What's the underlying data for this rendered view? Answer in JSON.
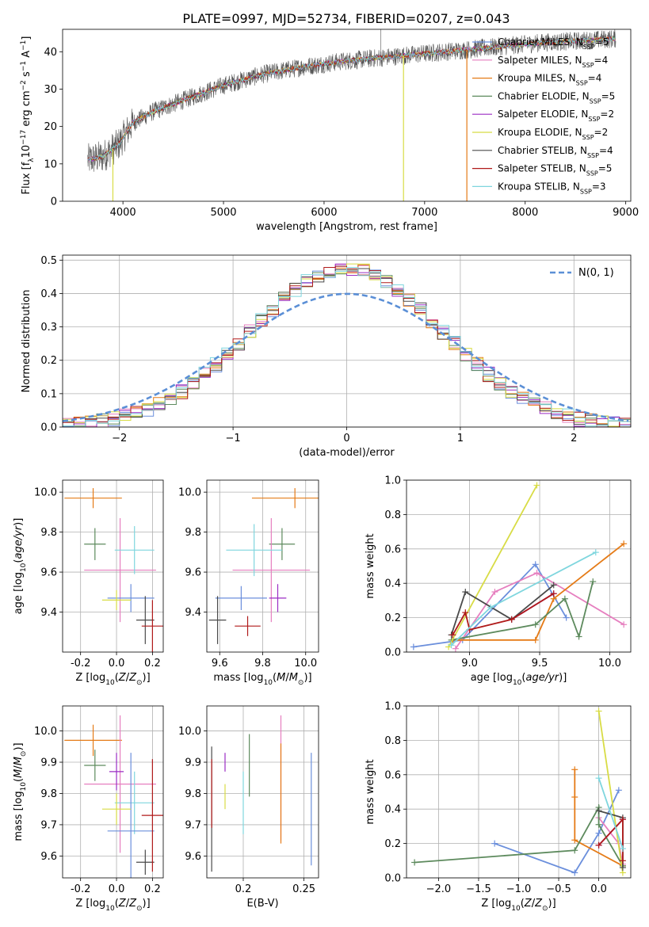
{
  "figure": {
    "title": "PLATE=0997, MJD=52734, FIBERID=0207, z=0.043"
  },
  "colors": {
    "Chabrier MILES": "#6b8fdc",
    "Salpeter MILES": "#e67fbf",
    "Kroupa MILES": "#e57b17",
    "Chabrier ELODIE": "#5d8a5d",
    "Salpeter ELODIE": "#9b2cc4",
    "Kroupa ELODIE": "#d8dc45",
    "Chabrier STELIB": "#4a4a4a",
    "Salpeter STELIB": "#b01a1a",
    "Kroupa STELIB": "#7fd6de",
    "data_gray": "#555555",
    "normal_curve": "#5b8fd6"
  },
  "chart_data": [
    {
      "id": "spectrum",
      "type": "line",
      "title": "",
      "xlabel": "wavelength [Angstrom, rest frame]",
      "ylabel": "Flux [f_λ 10^-17 erg cm^-2 s^-1 A^-1]",
      "xlim": [
        3400,
        9050
      ],
      "ylim": [
        0,
        46
      ],
      "xticks": [
        4000,
        5000,
        6000,
        7000,
        8000,
        9000
      ],
      "yticks": [
        0,
        10,
        20,
        30,
        40
      ],
      "legend_loc": "upper-right",
      "legend": [
        {
          "model": "Chabrier MILES",
          "label": "Chabrier MILES, N",
          "sub": "SSP",
          "tail": "=5"
        },
        {
          "model": "Salpeter MILES",
          "label": "Salpeter MILES, N",
          "sub": "SSP",
          "tail": "=4"
        },
        {
          "model": "Kroupa MILES",
          "label": "Kroupa MILES, N",
          "sub": "SSP",
          "tail": "=4"
        },
        {
          "model": "Chabrier ELODIE",
          "label": "Chabrier ELODIE, N",
          "sub": "SSP",
          "tail": "=5"
        },
        {
          "model": "Salpeter ELODIE",
          "label": "Salpeter ELODIE, N",
          "sub": "SSP",
          "tail": "=2"
        },
        {
          "model": "Kroupa ELODIE",
          "label": "Kroupa ELODIE, N",
          "sub": "SSP",
          "tail": "=2"
        },
        {
          "model": "Chabrier STELIB",
          "label": "Chabrier STELIB, N",
          "sub": "SSP",
          "tail": "=4"
        },
        {
          "model": "Salpeter STELIB",
          "label": "Salpeter STELIB, N",
          "sub": "SSP",
          "tail": "=5"
        },
        {
          "model": "Kroupa STELIB",
          "label": "Kroupa STELIB, N",
          "sub": "SSP",
          "tail": "=3"
        }
      ],
      "continuum": {
        "x": [
          3650,
          3800,
          3950,
          4100,
          4300,
          4600,
          5000,
          5400,
          5800,
          6200,
          6600,
          7000,
          7400,
          7800,
          8200,
          8600,
          8900
        ],
        "y": [
          11,
          12,
          15,
          21,
          24,
          27,
          31,
          34,
          36,
          37.5,
          38.5,
          39.5,
          40.5,
          41.5,
          42.5,
          43,
          43.5
        ]
      },
      "drops": [
        {
          "model": "Kroupa ELODIE",
          "x": 3900
        },
        {
          "model": "Kroupa ELODIE",
          "x": 6790
        },
        {
          "model": "Kroupa MILES",
          "x": 7420
        }
      ]
    },
    {
      "id": "residual-histogram",
      "type": "step",
      "xlabel": "(data-model)/error",
      "ylabel": "Normed distribution",
      "xlim": [
        -2.5,
        2.5
      ],
      "ylim": [
        0,
        0.515
      ],
      "xticks": [
        -2,
        -1,
        0,
        1,
        2
      ],
      "xtick_labels": [
        "−2",
        "−1",
        "0",
        "1",
        "2"
      ],
      "yticks": [
        0.0,
        0.1,
        0.2,
        0.3,
        0.4,
        0.5
      ],
      "legend_loc": "upper-right",
      "normal_label": "N(0, 1)",
      "bin_width": 0.1,
      "grid": true
    },
    {
      "id": "age-vs-Z",
      "type": "errorbar",
      "xlabel": "Z [log10(Z/Z⊙)]",
      "ylabel": "age [log10(age/yr)]",
      "xlim": [
        -0.3,
        0.26
      ],
      "ylim": [
        9.2,
        10.06
      ],
      "xticks": [
        -0.2,
        0.0,
        0.2
      ],
      "yticks": [
        9.4,
        9.6,
        9.8,
        10.0
      ],
      "points": [
        {
          "model": "Kroupa MILES",
          "x": -0.13,
          "y": 9.97,
          "xerr": 0.16,
          "yerr": 0.05
        },
        {
          "model": "Chabrier ELODIE",
          "x": -0.12,
          "y": 9.74,
          "xerr": 0.06,
          "yerr": 0.08
        },
        {
          "model": "Salpeter MILES",
          "x": 0.02,
          "y": 9.61,
          "xerr": 0.2,
          "yerr": 0.26
        },
        {
          "model": "Kroupa STELIB",
          "x": 0.1,
          "y": 9.71,
          "xerr": 0.11,
          "yerr": 0.12
        },
        {
          "model": "Chabrier MILES",
          "x": 0.08,
          "y": 9.47,
          "xerr": 0.13,
          "yerr": 0.07
        },
        {
          "model": "Chabrier STELIB",
          "x": 0.16,
          "y": 9.36,
          "xerr": 0.05,
          "yerr": 0.12
        },
        {
          "model": "Salpeter STELIB",
          "x": 0.2,
          "y": 9.33,
          "xerr": 0.06,
          "yerr": 0.13
        },
        {
          "model": "Kroupa ELODIE",
          "x": 0.0,
          "y": 9.46,
          "xerr": 0.08,
          "yerr": 0.05
        }
      ]
    },
    {
      "id": "age-vs-mass",
      "type": "errorbar",
      "xlabel": "mass [log10(M/M⊙)]",
      "ylabel": "",
      "xlim": [
        9.54,
        10.06
      ],
      "ylim": [
        9.2,
        10.06
      ],
      "xticks": [
        9.6,
        9.8,
        10.0
      ],
      "yticks": [
        9.4,
        9.6,
        9.8,
        10.0
      ],
      "points": [
        {
          "model": "Kroupa MILES",
          "x": 9.95,
          "y": 9.97,
          "xerr": 0.2,
          "yerr": 0.05
        },
        {
          "model": "Chabrier ELODIE",
          "x": 9.89,
          "y": 9.74,
          "xerr": 0.06,
          "yerr": 0.08
        },
        {
          "model": "Salpeter MILES",
          "x": 9.84,
          "y": 9.61,
          "xerr": 0.18,
          "yerr": 0.26
        },
        {
          "model": "Kroupa STELIB",
          "x": 9.76,
          "y": 9.71,
          "xerr": 0.13,
          "yerr": 0.13
        },
        {
          "model": "Chabrier MILES",
          "x": 9.7,
          "y": 9.47,
          "xerr": 0.12,
          "yerr": 0.06
        },
        {
          "model": "Chabrier STELIB",
          "x": 9.59,
          "y": 9.36,
          "xerr": 0.04,
          "yerr": 0.12
        },
        {
          "model": "Salpeter STELIB",
          "x": 9.73,
          "y": 9.33,
          "xerr": 0.06,
          "yerr": 0.05
        },
        {
          "model": "Salpeter ELODIE",
          "x": 9.87,
          "y": 9.47,
          "xerr": 0.04,
          "yerr": 0.07
        }
      ]
    },
    {
      "id": "mass-weight-vs-age",
      "type": "line",
      "xlabel": "age [log10(age/yr)]",
      "ylabel": "mass weight",
      "xlim": [
        8.55,
        10.15
      ],
      "ylim": [
        0,
        1
      ],
      "xticks": [
        9.0,
        9.5,
        10.0
      ],
      "yticks": [
        0.0,
        0.2,
        0.4,
        0.6,
        0.8,
        1.0
      ],
      "series": [
        {
          "model": "Chabrier MILES",
          "x": [
            8.6,
            8.95,
            9.47,
            9.69
          ],
          "y": [
            0.03,
            0.07,
            0.51,
            0.2
          ]
        },
        {
          "model": "Salpeter MILES",
          "x": [
            8.9,
            9.18,
            9.48,
            10.1
          ],
          "y": [
            0.02,
            0.35,
            0.46,
            0.16
          ]
        },
        {
          "model": "Kroupa MILES",
          "x": [
            8.88,
            9.47,
            9.6,
            10.1
          ],
          "y": [
            0.07,
            0.07,
            0.31,
            0.63
          ]
        },
        {
          "model": "Chabrier ELODIE",
          "x": [
            8.87,
            9.47,
            9.68,
            9.78,
            9.88
          ],
          "y": [
            0.07,
            0.16,
            0.31,
            0.09,
            0.41
          ]
        },
        {
          "model": "Salpeter ELODIE",
          "x": [
            9.3,
            9.6
          ],
          "y": [
            0.19,
            0.34
          ]
        },
        {
          "model": "Kroupa ELODIE",
          "x": [
            8.85,
            9.48
          ],
          "y": [
            0.03,
            0.97
          ]
        },
        {
          "model": "Chabrier STELIB",
          "x": [
            8.87,
            8.97,
            9.3,
            9.6
          ],
          "y": [
            0.1,
            0.35,
            0.19,
            0.39
          ]
        },
        {
          "model": "Salpeter STELIB",
          "x": [
            8.88,
            8.97,
            9.0,
            9.3,
            9.6
          ],
          "y": [
            0.1,
            0.23,
            0.13,
            0.19,
            0.34
          ]
        },
        {
          "model": "Kroupa STELIB",
          "x": [
            8.87,
            9.15,
            9.9
          ],
          "y": [
            0.04,
            0.26,
            0.58
          ]
        }
      ]
    },
    {
      "id": "mass-vs-Z",
      "type": "errorbar",
      "xlabel": "Z [log10(Z/Z⊙)]",
      "ylabel": "mass [log10(M/M⊙)]",
      "xlim": [
        -0.3,
        0.26
      ],
      "ylim": [
        9.53,
        10.08
      ],
      "xticks": [
        -0.2,
        0.0,
        0.2
      ],
      "yticks": [
        9.6,
        9.7,
        9.8,
        9.9,
        10.0
      ],
      "points": [
        {
          "model": "Kroupa MILES",
          "x": -0.13,
          "y": 9.97,
          "xerr": 0.16,
          "yerr": 0.05
        },
        {
          "model": "Chabrier ELODIE",
          "x": -0.12,
          "y": 9.89,
          "xerr": 0.06,
          "yerr": 0.05
        },
        {
          "model": "Salpeter MILES",
          "x": 0.02,
          "y": 9.83,
          "xerr": 0.2,
          "yerr": 0.22
        },
        {
          "model": "Kroupa STELIB",
          "x": 0.1,
          "y": 9.77,
          "xerr": 0.11,
          "yerr": 0.1
        },
        {
          "model": "Chabrier MILES",
          "x": 0.08,
          "y": 9.68,
          "xerr": 0.13,
          "yerr": 0.25
        },
        {
          "model": "Chabrier STELIB",
          "x": 0.16,
          "y": 9.58,
          "xerr": 0.05,
          "yerr": 0.04
        },
        {
          "model": "Salpeter STELIB",
          "x": 0.2,
          "y": 9.73,
          "xerr": 0.06,
          "yerr": 0.18
        },
        {
          "model": "Kroupa ELODIE",
          "x": 0.0,
          "y": 9.75,
          "xerr": 0.08,
          "yerr": 0.05
        },
        {
          "model": "Salpeter ELODIE",
          "x": 0.0,
          "y": 9.87,
          "xerr": 0.04,
          "yerr": 0.06
        }
      ]
    },
    {
      "id": "mass-vs-EBV",
      "type": "errorbar",
      "xlabel": "E(B-V)",
      "ylabel": "",
      "xlim": [
        0.17,
        0.262
      ],
      "ylim": [
        9.53,
        10.08
      ],
      "xticks": [
        0.2,
        0.25
      ],
      "yticks": [
        9.6,
        9.7,
        9.8,
        9.9,
        10.0
      ],
      "points": [
        {
          "model": "Chabrier STELIB",
          "x": 0.174,
          "y": 9.75,
          "xerr": 0.0,
          "yerr": 0.2
        },
        {
          "model": "Salpeter STELIB",
          "x": 0.174,
          "y": 9.8,
          "xerr": 0.0,
          "yerr": 0.11
        },
        {
          "model": "Salpeter ELODIE",
          "x": 0.185,
          "y": 9.9,
          "xerr": 0.0,
          "yerr": 0.03
        },
        {
          "model": "Kroupa ELODIE",
          "x": 0.185,
          "y": 9.79,
          "xerr": 0.0,
          "yerr": 0.04
        },
        {
          "model": "Kroupa STELIB",
          "x": 0.2,
          "y": 9.77,
          "xerr": 0.0,
          "yerr": 0.1
        },
        {
          "model": "Chabrier ELODIE",
          "x": 0.205,
          "y": 9.89,
          "xerr": 0.0,
          "yerr": 0.1
        },
        {
          "model": "Salpeter MILES",
          "x": 0.231,
          "y": 9.85,
          "xerr": 0.0,
          "yerr": 0.2
        },
        {
          "model": "Kroupa MILES",
          "x": 0.231,
          "y": 9.8,
          "xerr": 0.0,
          "yerr": 0.16
        },
        {
          "model": "Chabrier MILES",
          "x": 0.256,
          "y": 9.75,
          "xerr": 0.0,
          "yerr": 0.18
        }
      ]
    },
    {
      "id": "mass-weight-vs-Z",
      "type": "line",
      "xlabel": "Z [log10(Z/Z⊙)]",
      "ylabel": "mass weight",
      "xlim": [
        -2.4,
        0.4
      ],
      "ylim": [
        0,
        1
      ],
      "xticks": [
        -2.0,
        -1.5,
        -1.0,
        -0.5,
        0.0
      ],
      "xtick_labels": [
        "−2.0",
        "−1.5",
        "−1.0",
        "−0.5",
        "0.0"
      ],
      "yticks": [
        0.0,
        0.2,
        0.4,
        0.6,
        0.8,
        1.0
      ],
      "series": [
        {
          "model": "Chabrier MILES",
          "x": [
            -1.3,
            -0.3,
            0.0,
            0.25
          ],
          "y": [
            0.2,
            0.03,
            0.26,
            0.51
          ]
        },
        {
          "model": "Salpeter MILES",
          "x": [
            0.0,
            0.25,
            0.3
          ],
          "y": [
            0.35,
            0.2,
            0.08
          ]
        },
        {
          "model": "Kroupa MILES",
          "x": [
            -0.3,
            -0.3,
            -0.3,
            0.3
          ],
          "y": [
            0.63,
            0.47,
            0.22,
            0.07
          ]
        },
        {
          "model": "Chabrier ELODIE",
          "x": [
            -2.3,
            -0.3,
            0.0,
            0.0,
            0.3
          ],
          "y": [
            0.09,
            0.16,
            0.41,
            0.31,
            0.07
          ]
        },
        {
          "model": "Salpeter ELODIE",
          "x": [
            0.0,
            0.3
          ],
          "y": [
            0.19,
            0.34
          ]
        },
        {
          "model": "Kroupa ELODIE",
          "x": [
            0.0,
            0.3
          ],
          "y": [
            0.97,
            0.03
          ]
        },
        {
          "model": "Chabrier STELIB",
          "x": [
            0.0,
            0.3,
            0.3
          ],
          "y": [
            0.39,
            0.35,
            0.06
          ]
        },
        {
          "model": "Salpeter STELIB",
          "x": [
            0.0,
            0.3,
            0.3
          ],
          "y": [
            0.19,
            0.34,
            0.1
          ]
        },
        {
          "model": "Kroupa STELIB",
          "x": [
            0.0,
            0.3
          ],
          "y": [
            0.58,
            0.17
          ]
        }
      ]
    }
  ]
}
